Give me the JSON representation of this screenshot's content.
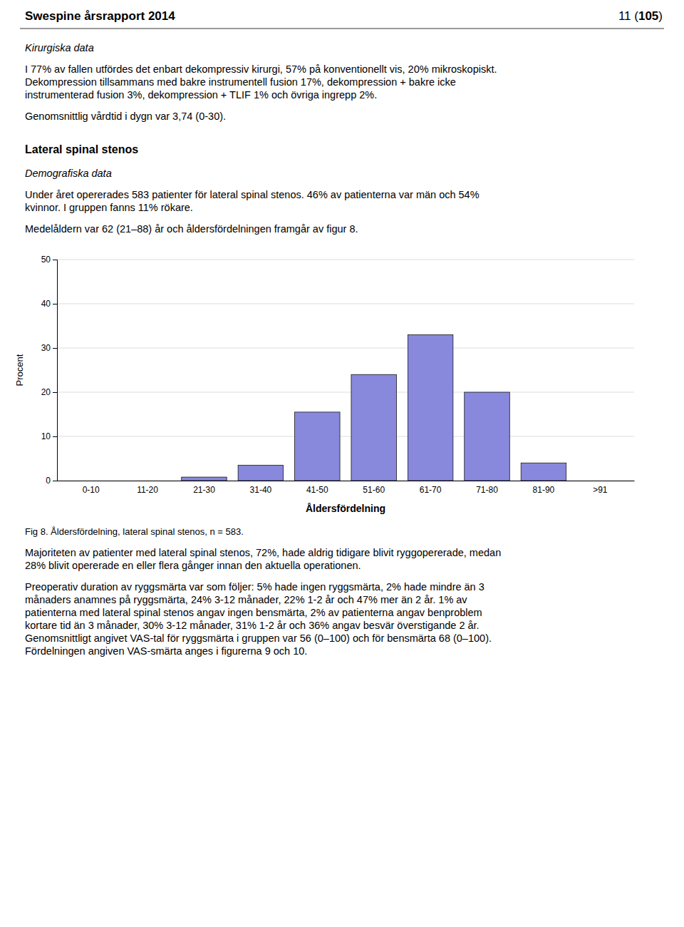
{
  "page": {
    "title": "Swespine årsrapport 2014",
    "page_number": [
      "11 (",
      "105",
      ")"
    ],
    "before_chart": [
      {
        "style": "italic",
        "lines": [
          "Kirurgiska data"
        ]
      },
      {
        "style": "normal",
        "lines": [
          "I 77% av fallen utfördes det enbart dekompressiv kirurgi, 57% på konventionellt vis, 20% mikroskopiskt.",
          "Dekompression tillsammans med bakre instrumentell fusion 17%, dekompression + bakre icke",
          "instrumenterad fusion 3%, dekompression + TLIF 1% och övriga ingrepp 2%."
        ]
      },
      {
        "style": "normal",
        "lines": [
          "Genomsnittlig vårdtid i dygn var 3,74 (0-30)."
        ]
      },
      {
        "style": "bold",
        "lines": [
          "Lateral spinal stenos"
        ]
      },
      {
        "style": "italic",
        "lines": [
          "Demografiska data"
        ]
      },
      {
        "style": "normal",
        "lines": [
          "Under året opererades 583 patienter för lateral spinal stenos. 46% av patienterna var män och 54%",
          "kvinnor. I gruppen fanns 11% rökare."
        ]
      },
      {
        "style": "normal",
        "lines": [
          "Medelåldern var 62 (21–88) år och åldersfördelningen framgår av figur 8."
        ]
      }
    ],
    "after_chart": [
      {
        "style": "small",
        "lines": [
          "Fig 8. Åldersfördelning, lateral spinal stenos, n = 583."
        ]
      },
      {
        "style": "normal",
        "lines": [
          "Majoriteten av patienter med lateral spinal stenos, 72%, hade aldrig tidigare blivit ryggopererade, medan",
          "28% blivit opererade en eller flera gånger innan den aktuella operationen."
        ]
      },
      {
        "style": "normal",
        "lines": [
          "Preoperativ duration av ryggsmärta var som följer: 5% hade ingen ryggsmärta, 2% hade mindre än 3",
          "månaders anamnes på ryggsmärta, 24% 3-12 månader, 22% 1-2 år och 47% mer än 2 år. 1% av",
          "patienterna med lateral spinal stenos angav ingen bensmärta, 2% av patienterna angav benproblem",
          "kortare tid än 3 månader, 30% 3-12 månader, 31% 1-2 år och 36% angav besvär överstigande 2 år.",
          "Genomsnittligt angivet VAS-tal för ryggsmärta i gruppen var 56 (0–100) och för bensmärta 68 (0–100).",
          "Fördelningen angiven VAS-smärta anges i figurerna 9 och 10."
        ]
      }
    ]
  },
  "chart_data": {
    "type": "bar",
    "categories": [
      "0-10",
      "11-20",
      "21-30",
      "31-40",
      "41-50",
      "51-60",
      "61-70",
      "71-80",
      "81-90",
      ">91"
    ],
    "values": [
      0,
      0,
      0.8,
      3.5,
      15.5,
      24,
      33,
      20,
      4,
      0
    ],
    "color": "#8888dd",
    "ylabel": "Procent",
    "xlabel": "Åldersfördelning",
    "ylim": [
      0,
      50
    ],
    "yticks": [
      0,
      10,
      20,
      30,
      40,
      50
    ],
    "grid": true
  }
}
